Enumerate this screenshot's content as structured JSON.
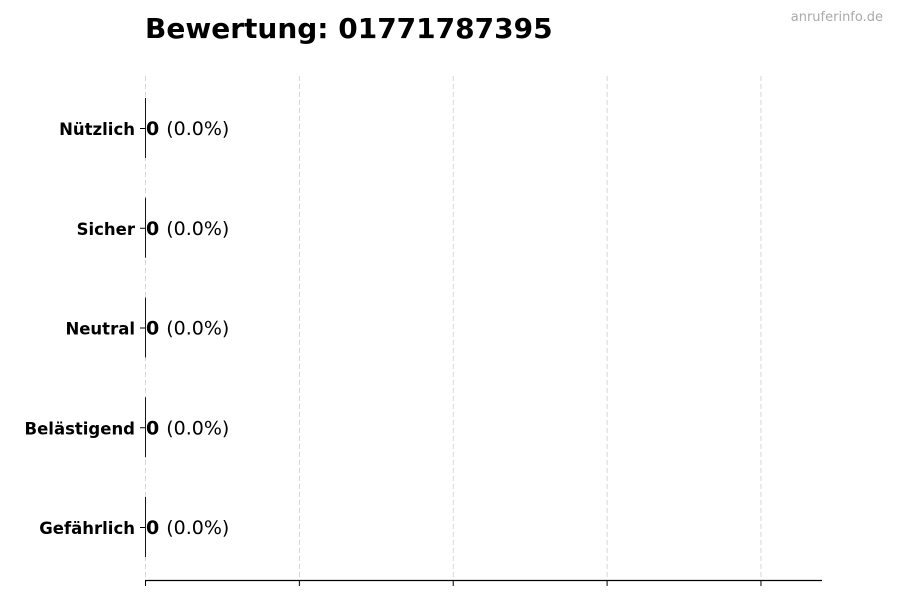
{
  "watermark": "anruferinfo.de",
  "chart_data": {
    "type": "bar",
    "orientation": "horizontal",
    "title": "Bewertung: 01771787395",
    "xlabel": "",
    "ylabel": "",
    "categories": [
      "Nützlich",
      "Sicher",
      "Neutral",
      "Belästigend",
      "Gefährlich"
    ],
    "values": [
      0,
      0,
      0,
      0,
      0
    ],
    "data_labels": {
      "values": [
        "0",
        "0",
        "0",
        "0",
        "0"
      ],
      "percents": [
        "(0.0%)",
        "(0.0%)",
        "(0.0%)",
        "(0.0%)",
        "(0.0%)"
      ]
    },
    "xlim": [
      0,
      4.4
    ],
    "xticks": [
      0,
      1,
      2,
      3,
      4
    ],
    "xtick_labels_shown": false,
    "grid": "x, dashed",
    "legend": "none",
    "colors": {
      "bar_edge": "#000000",
      "grid": "#cccccc",
      "watermark": "#aaaaaa"
    }
  }
}
